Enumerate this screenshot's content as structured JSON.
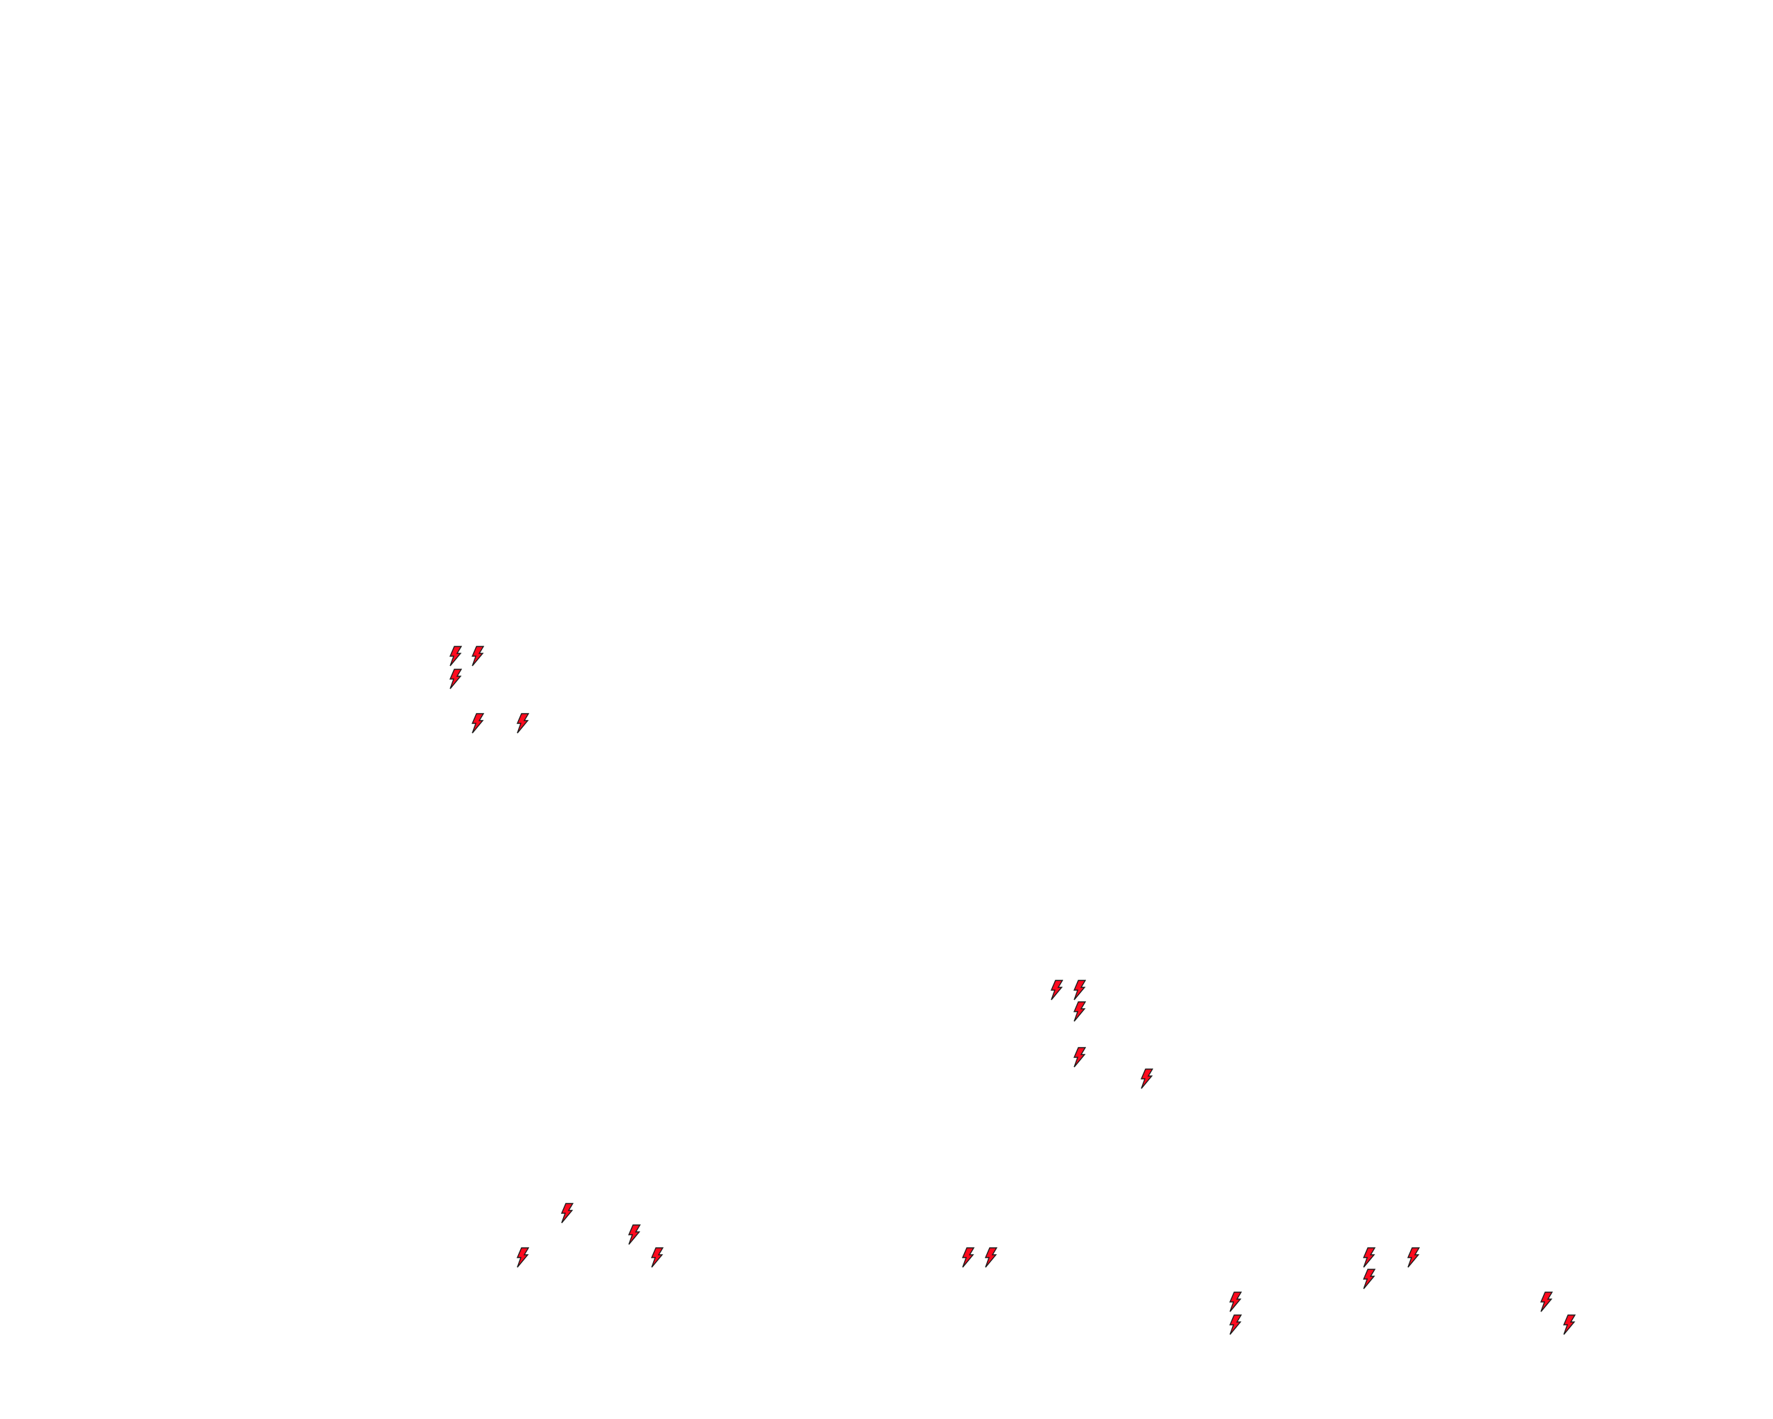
{
  "map": {
    "background_color": "#ffffff",
    "marker_icon": "lightning-bolt-icon",
    "marker_fill_color": "#ff0a1e",
    "marker_stroke_color": "#1a1a1a",
    "marker_count": 23
  }
}
